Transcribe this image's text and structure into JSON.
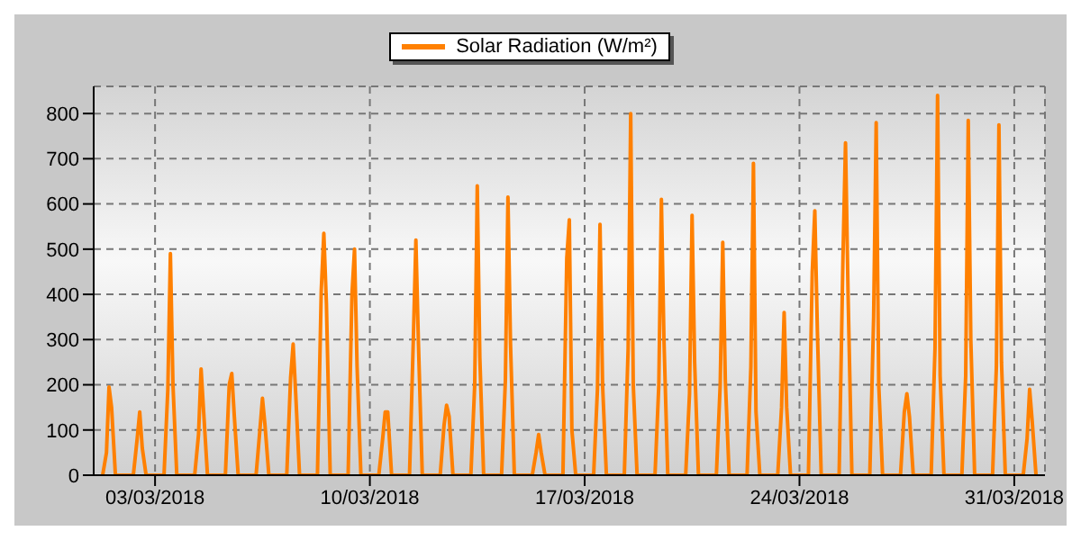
{
  "chart_data": {
    "type": "line",
    "x": [
      "2018-03-01T07:00",
      "2018-03-01T10:00",
      "2018-03-01T12:00",
      "2018-03-01T14:00",
      "2018-03-01T17:00",
      "2018-03-02T07:00",
      "2018-03-02T10:00",
      "2018-03-02T12:00",
      "2018-03-02T14:00",
      "2018-03-02T17:00",
      "2018-03-03T07:00",
      "2018-03-03T10:00",
      "2018-03-03T12:00",
      "2018-03-03T14:00",
      "2018-03-03T17:00",
      "2018-03-04T07:00",
      "2018-03-04T10:00",
      "2018-03-04T12:00",
      "2018-03-04T14:00",
      "2018-03-04T17:00",
      "2018-03-05T07:00",
      "2018-03-05T10:00",
      "2018-03-05T12:00",
      "2018-03-05T14:00",
      "2018-03-05T17:00",
      "2018-03-06T07:00",
      "2018-03-06T10:00",
      "2018-03-06T12:00",
      "2018-03-06T14:00",
      "2018-03-06T17:00",
      "2018-03-07T07:00",
      "2018-03-07T10:00",
      "2018-03-07T12:00",
      "2018-03-07T14:00",
      "2018-03-07T17:00",
      "2018-03-08T07:00",
      "2018-03-08T10:00",
      "2018-03-08T12:00",
      "2018-03-08T14:00",
      "2018-03-08T17:00",
      "2018-03-09T07:00",
      "2018-03-09T10:00",
      "2018-03-09T12:00",
      "2018-03-09T14:00",
      "2018-03-09T17:00",
      "2018-03-10T07:00",
      "2018-03-10T10:00",
      "2018-03-10T12:00",
      "2018-03-10T14:00",
      "2018-03-10T17:00",
      "2018-03-11T07:00",
      "2018-03-11T10:00",
      "2018-03-11T12:00",
      "2018-03-11T14:00",
      "2018-03-11T17:00",
      "2018-03-12T07:00",
      "2018-03-12T10:00",
      "2018-03-12T12:00",
      "2018-03-12T14:00",
      "2018-03-12T17:00",
      "2018-03-13T07:00",
      "2018-03-13T10:00",
      "2018-03-13T12:00",
      "2018-03-13T14:00",
      "2018-03-13T17:00",
      "2018-03-14T07:00",
      "2018-03-14T10:00",
      "2018-03-14T12:00",
      "2018-03-14T14:00",
      "2018-03-14T17:00",
      "2018-03-15T07:00",
      "2018-03-15T10:00",
      "2018-03-15T12:00",
      "2018-03-15T14:00",
      "2018-03-15T17:00",
      "2018-03-16T07:00",
      "2018-03-16T10:00",
      "2018-03-16T12:00",
      "2018-03-16T14:00",
      "2018-03-16T17:00",
      "2018-03-17T07:00",
      "2018-03-17T10:00",
      "2018-03-17T12:00",
      "2018-03-17T14:00",
      "2018-03-17T17:00",
      "2018-03-18T07:00",
      "2018-03-18T10:00",
      "2018-03-18T12:00",
      "2018-03-18T14:00",
      "2018-03-18T17:00",
      "2018-03-19T07:00",
      "2018-03-19T10:00",
      "2018-03-19T12:00",
      "2018-03-19T14:00",
      "2018-03-19T17:00",
      "2018-03-20T07:00",
      "2018-03-20T10:00",
      "2018-03-20T12:00",
      "2018-03-20T14:00",
      "2018-03-20T17:00",
      "2018-03-21T07:00",
      "2018-03-21T10:00",
      "2018-03-21T12:00",
      "2018-03-21T14:00",
      "2018-03-21T17:00",
      "2018-03-22T07:00",
      "2018-03-22T10:00",
      "2018-03-22T12:00",
      "2018-03-22T14:00",
      "2018-03-22T17:00",
      "2018-03-23T07:00",
      "2018-03-23T10:00",
      "2018-03-23T12:00",
      "2018-03-23T14:00",
      "2018-03-23T17:00",
      "2018-03-24T07:00",
      "2018-03-24T10:00",
      "2018-03-24T12:00",
      "2018-03-24T14:00",
      "2018-03-24T17:00",
      "2018-03-25T07:00",
      "2018-03-25T10:00",
      "2018-03-25T12:00",
      "2018-03-25T14:00",
      "2018-03-25T17:00",
      "2018-03-26T07:00",
      "2018-03-26T10:00",
      "2018-03-26T12:00",
      "2018-03-26T14:00",
      "2018-03-26T17:00",
      "2018-03-27T07:00",
      "2018-03-27T10:00",
      "2018-03-27T12:00",
      "2018-03-27T14:00",
      "2018-03-27T17:00",
      "2018-03-28T07:00",
      "2018-03-28T10:00",
      "2018-03-28T12:00",
      "2018-03-28T14:00",
      "2018-03-28T17:00",
      "2018-03-29T07:00",
      "2018-03-29T10:00",
      "2018-03-29T12:00",
      "2018-03-29T14:00",
      "2018-03-29T17:00",
      "2018-03-30T07:00",
      "2018-03-30T10:00",
      "2018-03-30T12:00",
      "2018-03-30T14:00",
      "2018-03-30T17:00",
      "2018-03-31T07:00",
      "2018-03-31T10:00",
      "2018-03-31T12:00",
      "2018-03-31T14:00",
      "2018-03-31T17:00"
    ],
    "series": [
      {
        "name": "Solar Radiation (W/m²)",
        "color": "#ff8000",
        "values": [
          0,
          50,
          195,
          150,
          0,
          0,
          80,
          140,
          60,
          0,
          0,
          190,
          490,
          200,
          0,
          0,
          90,
          235,
          140,
          0,
          0,
          200,
          225,
          130,
          0,
          0,
          100,
          170,
          110,
          0,
          0,
          215,
          290,
          180,
          0,
          0,
          410,
          535,
          380,
          0,
          0,
          400,
          500,
          240,
          0,
          0,
          80,
          140,
          140,
          0,
          0,
          300,
          520,
          290,
          0,
          0,
          110,
          155,
          130,
          0,
          0,
          200,
          640,
          260,
          0,
          0,
          210,
          615,
          290,
          0,
          0,
          50,
          90,
          50,
          0,
          0,
          480,
          565,
          100,
          0,
          0,
          190,
          555,
          200,
          0,
          0,
          280,
          800,
          200,
          0,
          0,
          200,
          610,
          300,
          0,
          0,
          180,
          575,
          250,
          0,
          0,
          200,
          515,
          210,
          0,
          0,
          240,
          690,
          140,
          0,
          0,
          150,
          360,
          150,
          0,
          0,
          450,
          585,
          320,
          0,
          0,
          480,
          735,
          400,
          0,
          0,
          350,
          780,
          200,
          0,
          0,
          140,
          180,
          130,
          0,
          0,
          280,
          840,
          220,
          0,
          0,
          220,
          785,
          300,
          0,
          0,
          240,
          775,
          250,
          0,
          0,
          80,
          190,
          120,
          0
        ]
      }
    ],
    "xlim": [
      "2018-03-01",
      "2018-04-01"
    ],
    "xticks": [
      {
        "value": "2018-03-03",
        "label": "03/03/2018"
      },
      {
        "value": "2018-03-10",
        "label": "10/03/2018"
      },
      {
        "value": "2018-03-17",
        "label": "17/03/2018"
      },
      {
        "value": "2018-03-24",
        "label": "24/03/2018"
      },
      {
        "value": "2018-03-31",
        "label": "31/03/2018"
      }
    ],
    "ylim": [
      0,
      860
    ],
    "yticks": [
      0,
      100,
      200,
      300,
      400,
      500,
      600,
      700,
      800
    ],
    "grid": true,
    "legend": "top",
    "marker": "none",
    "line_style": "solid"
  }
}
